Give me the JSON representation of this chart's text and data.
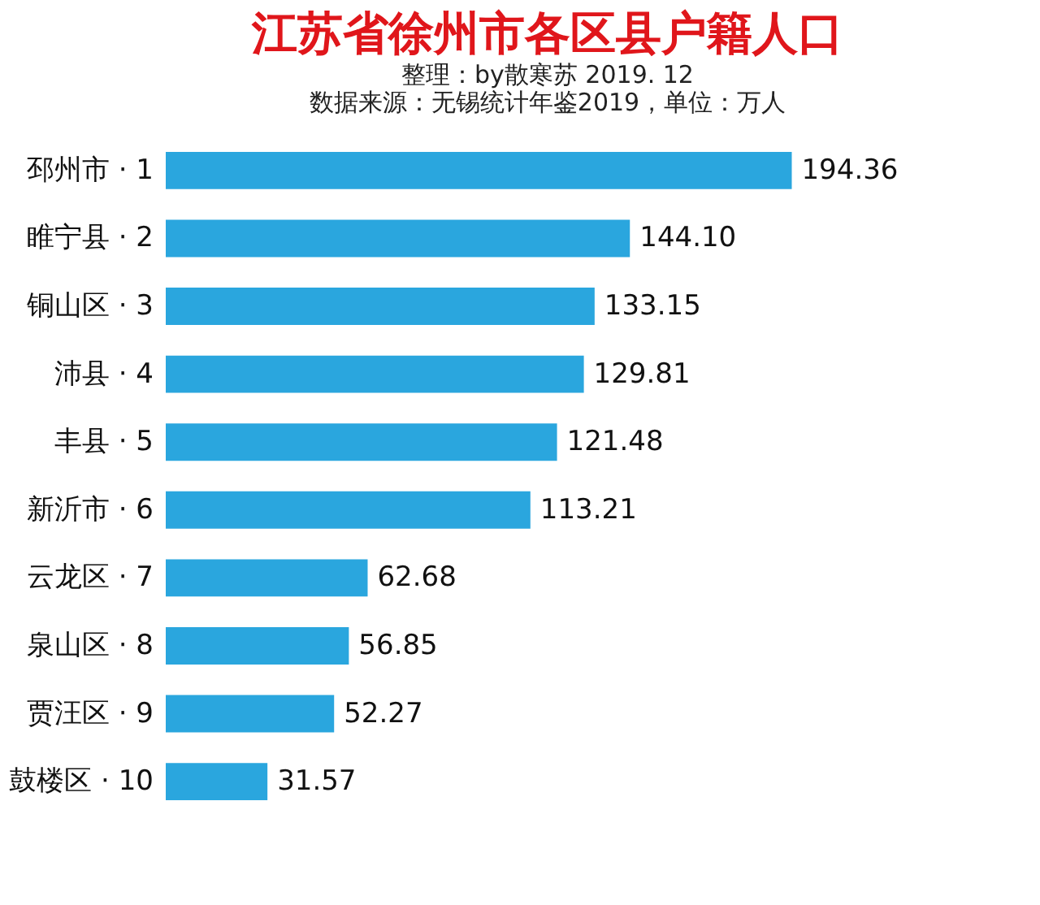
{
  "chart_data": {
    "type": "bar",
    "orientation": "horizontal",
    "title": "江苏省徐州市各区县户籍人口",
    "subtitle": "整理：by散寒苏  2019. 12",
    "annotations": [
      "数据来源：无锡统计年鉴2019，单位：万人"
    ],
    "categories": [
      "邳州市 · 1",
      "睢宁县 · 2",
      "铜山区 · 3",
      "沛县 · 4",
      "丰县 · 5",
      "新沂市 · 6",
      "云龙区 · 7",
      "泉山区 · 8",
      "贾汪区 · 9",
      "鼓楼区 · 10"
    ],
    "values": [
      194.36,
      144.1,
      133.15,
      129.81,
      121.48,
      113.21,
      62.68,
      56.85,
      52.27,
      31.57
    ],
    "value_labels": [
      "194.36",
      "144.10",
      "133.15",
      "129.81",
      "121.48",
      "113.21",
      "62.68",
      "56.85",
      "52.27",
      "31.57"
    ],
    "color": "#2aa6de",
    "tick_labels": "y"
  }
}
